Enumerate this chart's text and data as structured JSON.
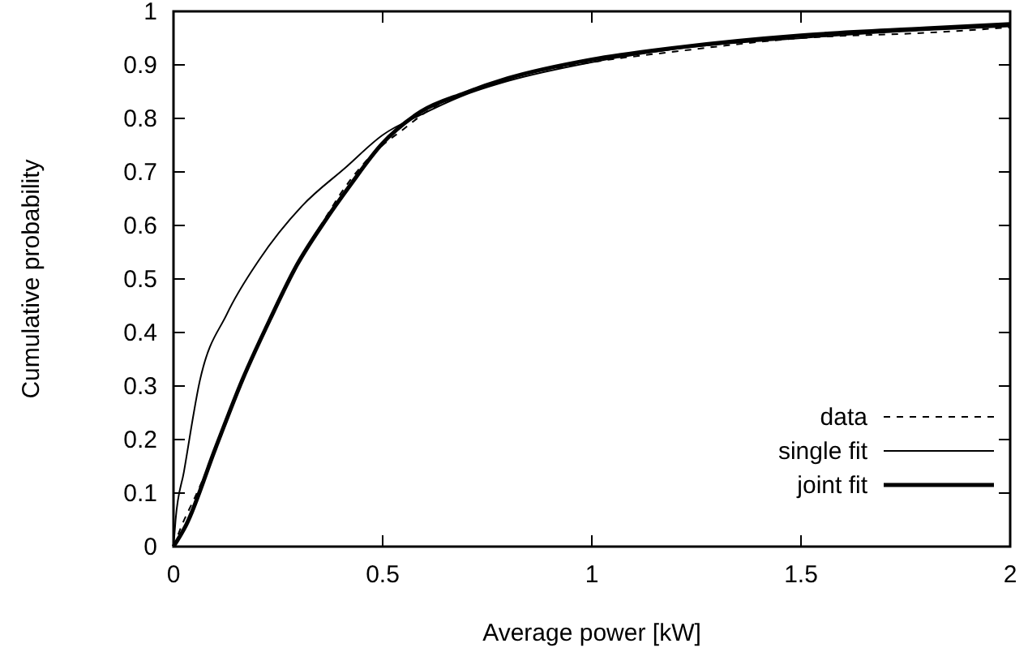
{
  "chart_data": {
    "type": "line",
    "xlabel": "Average power [kW]",
    "ylabel": "Cumulative probability",
    "xlim": [
      0,
      2
    ],
    "ylim": [
      0,
      1
    ],
    "xticks": [
      0,
      0.5,
      1,
      1.5,
      2
    ],
    "yticks": [
      0,
      0.1,
      0.2,
      0.3,
      0.4,
      0.5,
      0.6,
      0.7,
      0.8,
      0.9,
      1
    ],
    "grid": false,
    "legend": "bottom right",
    "marker": "none",
    "series": [
      {
        "name": "data",
        "color": "#000000",
        "line_style": "dashed",
        "x": [
          0,
          0.02,
          0.05,
          0.1,
          0.15,
          0.22,
          0.28,
          0.32,
          0.36,
          0.4,
          0.46,
          0.5,
          0.55,
          0.6,
          0.7,
          0.8,
          1,
          1.2,
          1.5,
          1.8,
          2
        ],
        "values": [
          0,
          0.04,
          0.09,
          0.18,
          0.28,
          0.41,
          0.5,
          0.56,
          0.61,
          0.66,
          0.72,
          0.75,
          0.78,
          0.81,
          0.85,
          0.875,
          0.905,
          0.925,
          0.95,
          0.96,
          0.97
        ]
      },
      {
        "name": "single fit",
        "color": "#000000",
        "line_style": "solid",
        "x": [
          0,
          0.005,
          0.025,
          0.063,
          0.128,
          0.205,
          0.308,
          0.411,
          0.5,
          0.6,
          0.7,
          0.8,
          1,
          1.2,
          1.5,
          1.8,
          2
        ],
        "values": [
          0,
          0.05,
          0.14,
          0.31,
          0.435,
          0.536,
          0.637,
          0.708,
          0.769,
          0.81,
          0.845,
          0.87,
          0.905,
          0.93,
          0.95,
          0.965,
          0.972
        ]
      },
      {
        "name": "joint fit",
        "color": "#000000",
        "line_style": "solid",
        "x": [
          0,
          0.03,
          0.1,
          0.166,
          0.231,
          0.295,
          0.36,
          0.424,
          0.498,
          0.592,
          0.695,
          0.8,
          1,
          1.2,
          1.5,
          1.8,
          2
        ],
        "values": [
          0,
          0.04,
          0.183,
          0.314,
          0.425,
          0.526,
          0.606,
          0.677,
          0.752,
          0.813,
          0.847,
          0.875,
          0.91,
          0.932,
          0.955,
          0.968,
          0.976
        ]
      }
    ]
  }
}
